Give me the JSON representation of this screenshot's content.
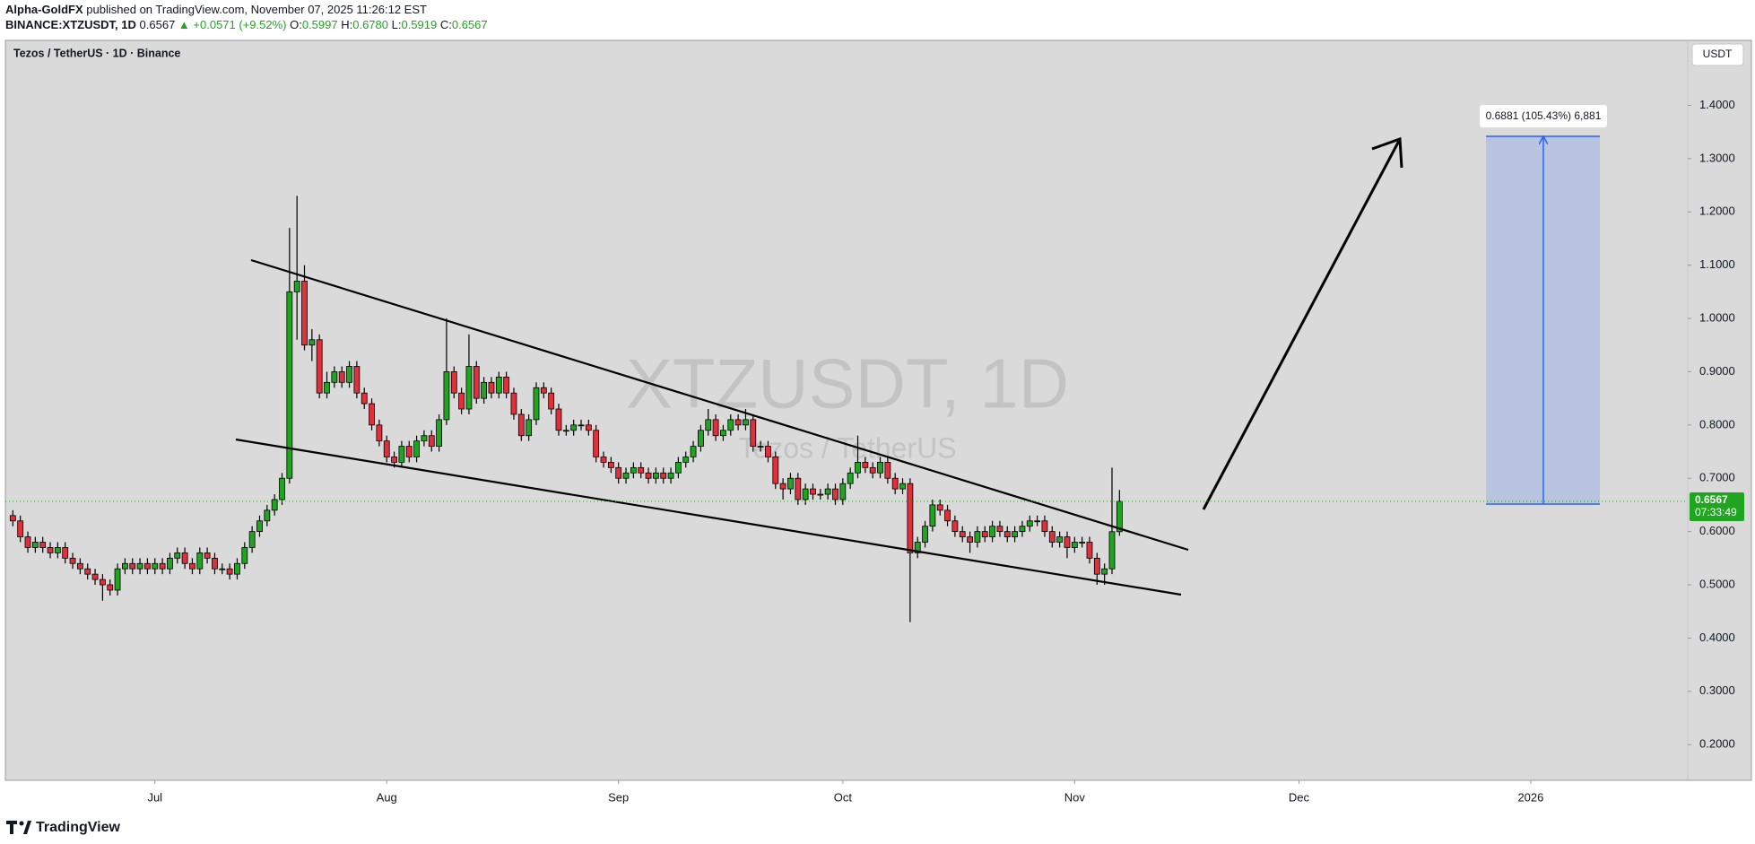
{
  "header": {
    "author": "Alpha-GoldFX",
    "published": "published on TradingView.com, November 07, 2025 11:26:12 EST",
    "symbol": "BINANCE:XTZUSDT, 1D",
    "last": "0.6567",
    "change": "▲ +0.0571 (+9.52%)",
    "o_label": "O:",
    "o": "0.5997",
    "h_label": "H:",
    "h": "0.6780",
    "l_label": "L:",
    "l": "0.5919",
    "c_label": "C:",
    "c": "0.6567"
  },
  "chart_data": {
    "type": "candlestick",
    "title": "Tezos / TetherUS · 1D · Binance",
    "watermark": "XTZUSDT, 1D",
    "watermark_subtitle": "Tezos / TetherUS",
    "currency": "USDT",
    "last_price_label": "0.6567",
    "countdown": "07:33:49",
    "measure_label": "0.6881 (105.43%) 6,881",
    "up_color": "#1fa51f",
    "down_color": "#e0303c",
    "price_line_color": "#1fa51f",
    "open": [
      0.63,
      0.62,
      0.59,
      0.57,
      0.58,
      0.57,
      0.56,
      0.57,
      0.55,
      0.54,
      0.53,
      0.52,
      0.51,
      0.5,
      0.49,
      0.53,
      0.54,
      0.53,
      0.54,
      0.53,
      0.54,
      0.53,
      0.55,
      0.56,
      0.54,
      0.53,
      0.56,
      0.55,
      0.53,
      0.53,
      0.52,
      0.54,
      0.57,
      0.6,
      0.62,
      0.64,
      0.66,
      0.7,
      1.05,
      1.07,
      0.95,
      0.96,
      0.86,
      0.88,
      0.9,
      0.88,
      0.91,
      0.86,
      0.84,
      0.8,
      0.77,
      0.74,
      0.73,
      0.76,
      0.74,
      0.77,
      0.78,
      0.76,
      0.81,
      0.9,
      0.86,
      0.83,
      0.91,
      0.85,
      0.88,
      0.86,
      0.89,
      0.86,
      0.82,
      0.78,
      0.81,
      0.87,
      0.86,
      0.83,
      0.79,
      0.79,
      0.8,
      0.8,
      0.79,
      0.74,
      0.73,
      0.72,
      0.7,
      0.71,
      0.72,
      0.71,
      0.7,
      0.71,
      0.7,
      0.71,
      0.73,
      0.74,
      0.76,
      0.79,
      0.81,
      0.78,
      0.79,
      0.81,
      0.8,
      0.81,
      0.76,
      0.76,
      0.74,
      0.69,
      0.68,
      0.7,
      0.66,
      0.68,
      0.67,
      0.67,
      0.68,
      0.66,
      0.69,
      0.71,
      0.73,
      0.72,
      0.71,
      0.73,
      0.7,
      0.68,
      0.69,
      0.56,
      0.58,
      0.61,
      0.65,
      0.64,
      0.62,
      0.6,
      0.59,
      0.58,
      0.6,
      0.59,
      0.61,
      0.6,
      0.59,
      0.6,
      0.61,
      0.62,
      0.62,
      0.6,
      0.58,
      0.59,
      0.57,
      0.58,
      0.58,
      0.55,
      0.52,
      0.53,
      0.5997
    ],
    "high": [
      0.64,
      0.63,
      0.6,
      0.59,
      0.59,
      0.58,
      0.58,
      0.58,
      0.56,
      0.55,
      0.54,
      0.53,
      0.52,
      0.51,
      0.54,
      0.55,
      0.55,
      0.55,
      0.55,
      0.55,
      0.55,
      0.56,
      0.57,
      0.57,
      0.55,
      0.57,
      0.57,
      0.56,
      0.54,
      0.54,
      0.55,
      0.58,
      0.61,
      0.63,
      0.65,
      0.67,
      0.71,
      1.17,
      1.23,
      1.1,
      0.98,
      0.97,
      0.9,
      0.91,
      0.91,
      0.92,
      0.92,
      0.87,
      0.85,
      0.81,
      0.78,
      0.75,
      0.77,
      0.77,
      0.78,
      0.79,
      0.79,
      0.82,
      1.0,
      0.91,
      0.87,
      0.97,
      0.92,
      0.89,
      0.89,
      0.9,
      0.9,
      0.87,
      0.83,
      0.82,
      0.88,
      0.88,
      0.87,
      0.84,
      0.8,
      0.81,
      0.81,
      0.81,
      0.8,
      0.75,
      0.74,
      0.73,
      0.72,
      0.73,
      0.73,
      0.72,
      0.72,
      0.72,
      0.72,
      0.74,
      0.75,
      0.77,
      0.8,
      0.83,
      0.82,
      0.8,
      0.82,
      0.82,
      0.83,
      0.82,
      0.77,
      0.77,
      0.75,
      0.7,
      0.71,
      0.71,
      0.69,
      0.69,
      0.68,
      0.69,
      0.69,
      0.7,
      0.72,
      0.78,
      0.74,
      0.73,
      0.74,
      0.74,
      0.71,
      0.7,
      0.7,
      0.59,
      0.62,
      0.66,
      0.66,
      0.65,
      0.63,
      0.61,
      0.6,
      0.61,
      0.61,
      0.62,
      0.62,
      0.61,
      0.61,
      0.62,
      0.63,
      0.63,
      0.63,
      0.61,
      0.6,
      0.6,
      0.59,
      0.59,
      0.59,
      0.56,
      0.54,
      0.72,
      0.678
    ],
    "low": [
      0.61,
      0.58,
      0.56,
      0.56,
      0.56,
      0.55,
      0.55,
      0.54,
      0.53,
      0.52,
      0.51,
      0.5,
      0.47,
      0.48,
      0.48,
      0.52,
      0.52,
      0.52,
      0.52,
      0.52,
      0.52,
      0.52,
      0.54,
      0.53,
      0.52,
      0.52,
      0.54,
      0.52,
      0.52,
      0.51,
      0.51,
      0.53,
      0.56,
      0.59,
      0.61,
      0.63,
      0.65,
      0.69,
      0.96,
      0.94,
      0.92,
      0.85,
      0.85,
      0.87,
      0.87,
      0.87,
      0.85,
      0.83,
      0.79,
      0.76,
      0.73,
      0.72,
      0.72,
      0.73,
      0.73,
      0.76,
      0.75,
      0.75,
      0.8,
      0.85,
      0.82,
      0.82,
      0.84,
      0.84,
      0.85,
      0.85,
      0.85,
      0.81,
      0.77,
      0.77,
      0.8,
      0.85,
      0.82,
      0.78,
      0.78,
      0.78,
      0.79,
      0.78,
      0.73,
      0.72,
      0.71,
      0.69,
      0.69,
      0.7,
      0.7,
      0.69,
      0.69,
      0.69,
      0.69,
      0.7,
      0.72,
      0.73,
      0.75,
      0.78,
      0.77,
      0.77,
      0.78,
      0.79,
      0.79,
      0.75,
      0.75,
      0.73,
      0.68,
      0.66,
      0.67,
      0.65,
      0.65,
      0.66,
      0.66,
      0.66,
      0.65,
      0.65,
      0.68,
      0.7,
      0.71,
      0.7,
      0.7,
      0.69,
      0.67,
      0.67,
      0.43,
      0.55,
      0.57,
      0.6,
      0.63,
      0.61,
      0.59,
      0.58,
      0.56,
      0.57,
      0.58,
      0.58,
      0.59,
      0.58,
      0.58,
      0.59,
      0.6,
      0.61,
      0.59,
      0.57,
      0.57,
      0.55,
      0.56,
      0.57,
      0.54,
      0.5,
      0.5,
      0.52,
      0.5919
    ],
    "close": [
      0.62,
      0.59,
      0.57,
      0.58,
      0.57,
      0.56,
      0.57,
      0.55,
      0.54,
      0.53,
      0.52,
      0.51,
      0.5,
      0.49,
      0.53,
      0.54,
      0.53,
      0.54,
      0.53,
      0.54,
      0.53,
      0.55,
      0.56,
      0.54,
      0.53,
      0.56,
      0.55,
      0.53,
      0.53,
      0.52,
      0.54,
      0.57,
      0.6,
      0.62,
      0.64,
      0.66,
      0.7,
      1.05,
      1.07,
      0.95,
      0.96,
      0.86,
      0.88,
      0.9,
      0.88,
      0.91,
      0.86,
      0.84,
      0.8,
      0.77,
      0.74,
      0.73,
      0.76,
      0.74,
      0.77,
      0.78,
      0.76,
      0.81,
      0.9,
      0.86,
      0.83,
      0.91,
      0.85,
      0.88,
      0.86,
      0.89,
      0.86,
      0.82,
      0.78,
      0.81,
      0.87,
      0.86,
      0.83,
      0.79,
      0.79,
      0.8,
      0.8,
      0.79,
      0.74,
      0.73,
      0.72,
      0.7,
      0.71,
      0.72,
      0.71,
      0.7,
      0.71,
      0.7,
      0.71,
      0.73,
      0.74,
      0.76,
      0.79,
      0.81,
      0.78,
      0.79,
      0.81,
      0.8,
      0.81,
      0.76,
      0.76,
      0.74,
      0.69,
      0.68,
      0.7,
      0.66,
      0.68,
      0.67,
      0.67,
      0.68,
      0.66,
      0.69,
      0.71,
      0.73,
      0.72,
      0.71,
      0.73,
      0.7,
      0.68,
      0.69,
      0.56,
      0.58,
      0.61,
      0.65,
      0.64,
      0.62,
      0.6,
      0.59,
      0.58,
      0.6,
      0.59,
      0.61,
      0.6,
      0.59,
      0.6,
      0.61,
      0.62,
      0.62,
      0.6,
      0.58,
      0.59,
      0.57,
      0.58,
      0.58,
      0.55,
      0.52,
      0.53,
      0.5997,
      0.6567
    ],
    "xlim": [
      -1,
      224
    ],
    "xticks": [
      {
        "value": 19,
        "label": "Jul"
      },
      {
        "value": 50,
        "label": "Aug"
      },
      {
        "value": 81,
        "label": "Sep"
      },
      {
        "value": 111,
        "label": "Oct"
      },
      {
        "value": 142,
        "label": "Nov"
      },
      {
        "value": 172,
        "label": "Dec"
      },
      {
        "value": 203,
        "label": "2026"
      }
    ],
    "ylim": [
      0.133,
      1.522
    ],
    "yticks": [
      {
        "value": 0.2,
        "label": "0.2000"
      },
      {
        "value": 0.3,
        "label": "0.3000"
      },
      {
        "value": 0.4,
        "label": "0.4000"
      },
      {
        "value": 0.5,
        "label": "0.5000"
      },
      {
        "value": 0.6,
        "label": "0.6000"
      },
      {
        "value": 0.7,
        "label": "0.7000"
      },
      {
        "value": 0.8,
        "label": "0.8000"
      },
      {
        "value": 0.9,
        "label": "0.9000"
      },
      {
        "value": 1.0,
        "label": "1.0000"
      },
      {
        "value": 1.1,
        "label": "1.1000"
      },
      {
        "value": 1.2,
        "label": "1.2000"
      },
      {
        "value": 1.3,
        "label": "1.3000"
      },
      {
        "value": 1.4,
        "label": "1.4000"
      }
    ]
  },
  "footer": {
    "brand": "TradingView"
  }
}
